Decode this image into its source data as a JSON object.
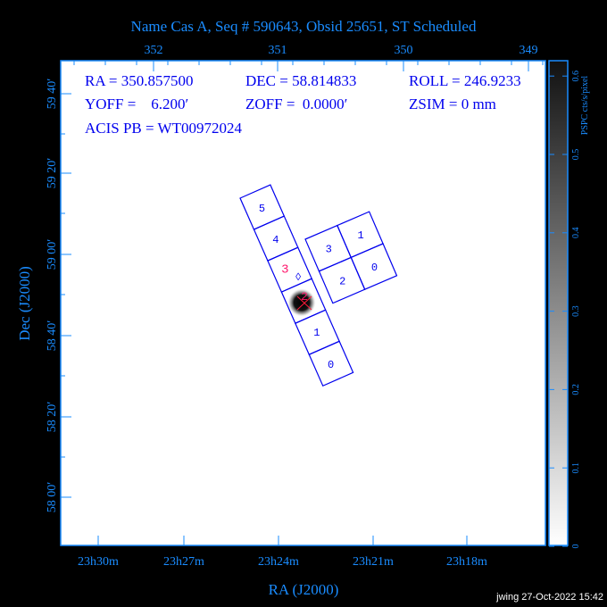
{
  "title": "Name Cas A, Seq # 590643, Obsid 25651, ST Scheduled",
  "footer": "jwing 27-Oct-2022 15:42",
  "info": {
    "ra": "RA = 350.857500",
    "dec": "DEC = 58.814833",
    "roll": "ROLL = 246.9233",
    "yoff": "YOFF =    6.200′",
    "zoff": "ZOFF =  0.0000′",
    "zsim": "ZSIM = 0 mm",
    "acis_pb": "ACIS PB = WT00972024"
  },
  "chart_data": {
    "type": "heatmap",
    "title": "Name Cas A, Seq # 590643, Obsid 25651, ST Scheduled",
    "xlabel": "RA (J2000)",
    "ylabel": "Dec (J2000)",
    "x_ticks_bottom": [
      "23h30m",
      "23h27m",
      "23h24m",
      "23h21m",
      "23h18m"
    ],
    "x_ticks_top": [
      "352",
      "351",
      "350",
      "349"
    ],
    "y_ticks": [
      "59 40′",
      "59 20′",
      "59 00′",
      "58 40′",
      "58 20′",
      "58 00′"
    ],
    "colorbar": {
      "label": "PSPC cts/s/pixel",
      "ticks": [
        "0",
        "0.1",
        "0.2",
        "0.3",
        "0.4",
        "0.5",
        "0.6"
      ],
      "range": [
        0,
        0.6
      ],
      "colormap": "white-to-black"
    },
    "acis_s_chips": [
      "5",
      "4",
      "3",
      "2",
      "1",
      "0"
    ],
    "acis_i_chips": [
      "3",
      "1",
      "2",
      "0"
    ],
    "colors": {
      "axis": "#1a8cff",
      "chips": "#0000ee",
      "marker": "#ff1a6e"
    }
  }
}
